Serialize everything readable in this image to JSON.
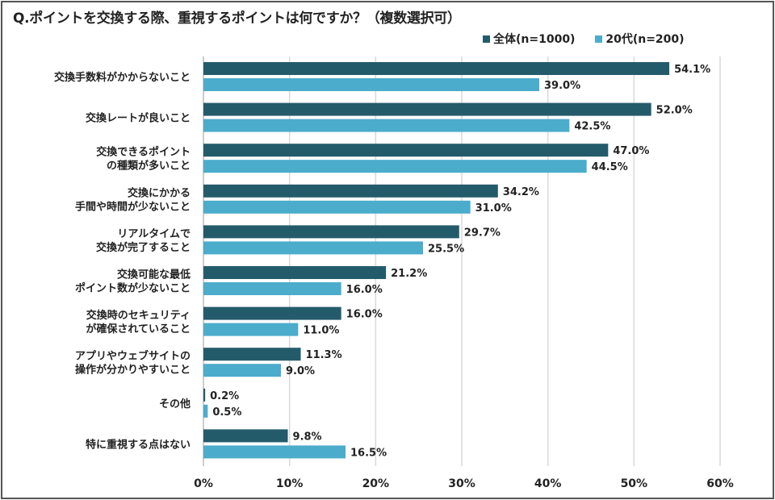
{
  "chart_data": {
    "type": "bar",
    "orientation": "horizontal",
    "title": "Q.ポイントを交換する際、重視するポイントは何ですか？（複数選択可）",
    "categories": [
      [
        "交換手数料がかからないこと"
      ],
      [
        "交換レートが良いこと"
      ],
      [
        "交換できるポイント",
        "の種類が多いこと"
      ],
      [
        "交換にかかる",
        "手間や時間が少ないこと"
      ],
      [
        "リアルタイムで",
        "交換が完了すること"
      ],
      [
        "交換可能な最低",
        "ポイント数が少ないこと"
      ],
      [
        "交換時のセキュリティ",
        "が確保されていること"
      ],
      [
        "アプリやウェブサイトの",
        "操作が分かりやすいこと"
      ],
      [
        "その他"
      ],
      [
        "特に重視する点はない"
      ]
    ],
    "series": [
      {
        "name": "全体(n=1000)",
        "color": "#245b6b",
        "values": [
          54.1,
          52.0,
          47.0,
          34.2,
          29.7,
          21.2,
          16.0,
          11.3,
          0.2,
          9.8
        ],
        "labels": [
          "54.1%",
          "52.0%",
          "47.0%",
          "34.2%",
          "29.7%",
          "21.2%",
          "16.0%",
          "11.3%",
          "0.2%",
          "9.8%"
        ]
      },
      {
        "name": "20代(n=200)",
        "color": "#4baccb",
        "values": [
          39.0,
          42.5,
          44.5,
          31.0,
          25.5,
          16.0,
          11.0,
          9.0,
          0.5,
          16.5
        ],
        "labels": [
          "39.0%",
          "42.5%",
          "44.5%",
          "31.0%",
          "25.5%",
          "16.0%",
          "11.0%",
          "9.0%",
          "0.5%",
          "16.5%"
        ]
      }
    ],
    "xlim": [
      0,
      60
    ],
    "xticks": [
      "0%",
      "10%",
      "20%",
      "30%",
      "40%",
      "50%",
      "60%"
    ],
    "xtick_values": [
      0,
      10,
      20,
      30,
      40,
      50,
      60
    ],
    "grid": true,
    "legend_position": "top-right",
    "xlabel": "",
    "ylabel": ""
  }
}
